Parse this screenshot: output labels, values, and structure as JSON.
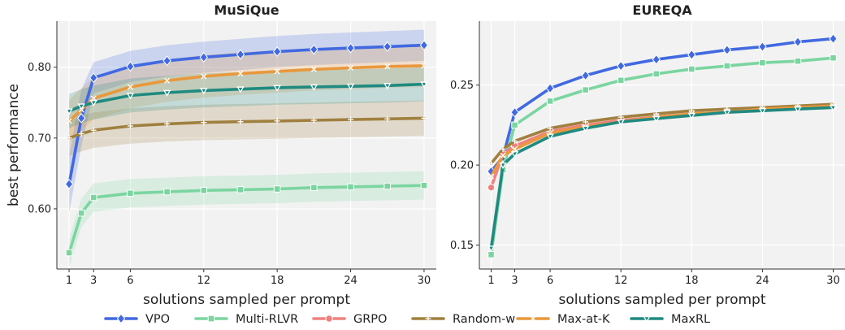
{
  "legend": [
    {
      "name": "VPO",
      "color": "#4169e1",
      "marker": "diamond"
    },
    {
      "name": "Multi-RLVR",
      "color": "#7bd5a0",
      "marker": "square"
    },
    {
      "name": "GRPO",
      "color": "#f08080",
      "marker": "circle"
    },
    {
      "name": "Random-w",
      "color": "#a0803f",
      "marker": "plus"
    },
    {
      "name": "Max-at-K",
      "color": "#e9983c",
      "marker": "x"
    },
    {
      "name": "MaxRL",
      "color": "#1f8a80",
      "marker": "tri"
    }
  ],
  "chart_data": [
    {
      "type": "line",
      "title": "MuSiQue",
      "xlabel": "solutions sampled per prompt",
      "ylabel": "best performance",
      "xlim": [
        0,
        31
      ],
      "ylim": [
        0.515,
        0.865
      ],
      "xticks": [
        1,
        3,
        6,
        12,
        18,
        24,
        30
      ],
      "yticks": [
        0.6,
        0.7,
        0.8
      ],
      "ytick_labels": [
        "0.60",
        "0.70",
        "0.80"
      ],
      "grid": true,
      "x": [
        1,
        2,
        3,
        6,
        9,
        12,
        15,
        18,
        21,
        24,
        27,
        30
      ],
      "series": [
        {
          "name": "VPO",
          "values": [
            0.635,
            0.728,
            0.785,
            0.801,
            0.809,
            0.814,
            0.818,
            0.822,
            0.825,
            0.827,
            0.829,
            0.831
          ],
          "band": [
            0.04,
            0.04,
            0.022,
            0.022,
            0.022,
            0.022,
            0.022,
            0.022,
            0.022,
            0.022,
            0.022,
            0.022
          ]
        },
        {
          "name": "Multi-RLVR",
          "values": [
            0.538,
            0.594,
            0.616,
            0.622,
            0.624,
            0.626,
            0.627,
            0.628,
            0.63,
            0.631,
            0.632,
            0.633
          ],
          "band": [
            0.02,
            0.02,
            0.02,
            0.02,
            0.02,
            0.02,
            0.02,
            0.02,
            0.02,
            0.02,
            0.02,
            0.02
          ]
        },
        {
          "name": "Random-w",
          "values": [
            0.7,
            0.706,
            0.711,
            0.717,
            0.72,
            0.722,
            0.723,
            0.724,
            0.725,
            0.726,
            0.727,
            0.728
          ],
          "band": [
            0.025,
            0.025,
            0.025,
            0.025,
            0.025,
            0.025,
            0.025,
            0.025,
            0.025,
            0.025,
            0.025,
            0.025
          ]
        },
        {
          "name": "Max-at-K",
          "values": [
            0.724,
            0.74,
            0.756,
            0.772,
            0.781,
            0.787,
            0.791,
            0.794,
            0.797,
            0.799,
            0.801,
            0.802
          ],
          "band": [
            0.03,
            0.03,
            0.03,
            0.03,
            0.03,
            0.03,
            0.03,
            0.03,
            0.03,
            0.03,
            0.03,
            0.03
          ]
        },
        {
          "name": "MaxRL",
          "values": [
            0.738,
            0.745,
            0.75,
            0.76,
            0.764,
            0.767,
            0.769,
            0.771,
            0.772,
            0.773,
            0.774,
            0.776
          ],
          "band": [
            0.024,
            0.024,
            0.024,
            0.024,
            0.024,
            0.024,
            0.024,
            0.024,
            0.024,
            0.024,
            0.024,
            0.024
          ]
        }
      ]
    },
    {
      "type": "line",
      "title": "EUREQA",
      "xlabel": "solutions sampled per prompt",
      "ylabel": "",
      "xlim": [
        0,
        31
      ],
      "ylim": [
        0.135,
        0.29
      ],
      "xticks": [
        1,
        3,
        6,
        12,
        18,
        24,
        30
      ],
      "yticks": [
        0.15,
        0.2,
        0.25
      ],
      "ytick_labels": [
        "0.15",
        "0.20",
        "0.25"
      ],
      "grid": true,
      "x": [
        1,
        2,
        3,
        6,
        9,
        12,
        15,
        18,
        21,
        24,
        27,
        30
      ],
      "series": [
        {
          "name": "VPO",
          "values": [
            0.196,
            0.205,
            0.233,
            0.248,
            0.256,
            0.262,
            0.266,
            0.269,
            0.272,
            0.274,
            0.277,
            0.279
          ]
        },
        {
          "name": "Multi-RLVR",
          "values": [
            0.144,
            0.197,
            0.225,
            0.24,
            0.247,
            0.253,
            0.257,
            0.26,
            0.262,
            0.264,
            0.265,
            0.267
          ]
        },
        {
          "name": "GRPO",
          "values": [
            0.186,
            0.207,
            0.212,
            0.221,
            0.225,
            0.228,
            0.23,
            0.232,
            0.233,
            0.235,
            0.236,
            0.237
          ]
        },
        {
          "name": "Random-w",
          "values": [
            0.201,
            0.21,
            0.215,
            0.223,
            0.227,
            0.23,
            0.232,
            0.234,
            0.235,
            0.236,
            0.237,
            0.238
          ]
        },
        {
          "name": "Max-at-K",
          "values": [
            0.193,
            0.206,
            0.21,
            0.22,
            0.224,
            0.227,
            0.23,
            0.232,
            0.233,
            0.235,
            0.236,
            0.237
          ]
        },
        {
          "name": "MaxRL",
          "values": [
            0.148,
            0.2,
            0.207,
            0.218,
            0.223,
            0.227,
            0.229,
            0.231,
            0.233,
            0.234,
            0.235,
            0.236
          ]
        }
      ]
    }
  ]
}
